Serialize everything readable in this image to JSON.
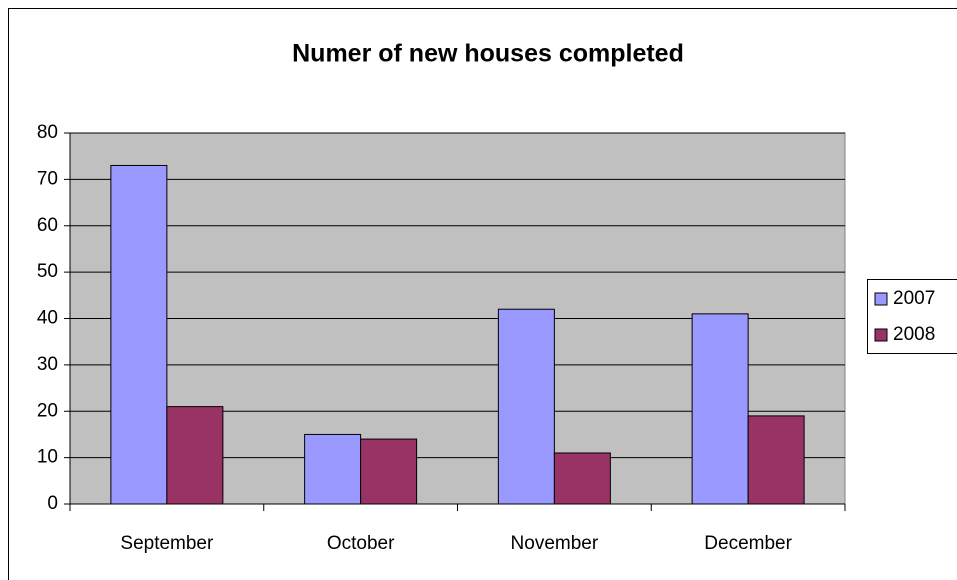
{
  "chart_data": {
    "type": "bar",
    "title": "Numer of new houses completed",
    "categories": [
      "September",
      "October",
      "November",
      "December"
    ],
    "series": [
      {
        "name": "2007",
        "color": "#9999ff",
        "values": [
          73,
          15,
          42,
          41
        ]
      },
      {
        "name": "2008",
        "color": "#993366",
        "values": [
          21,
          14,
          11,
          19
        ]
      }
    ],
    "ylim": [
      0,
      80
    ],
    "yticks": [
      0,
      10,
      20,
      30,
      40,
      50,
      60,
      70,
      80
    ],
    "grid": true,
    "legend": "right"
  }
}
